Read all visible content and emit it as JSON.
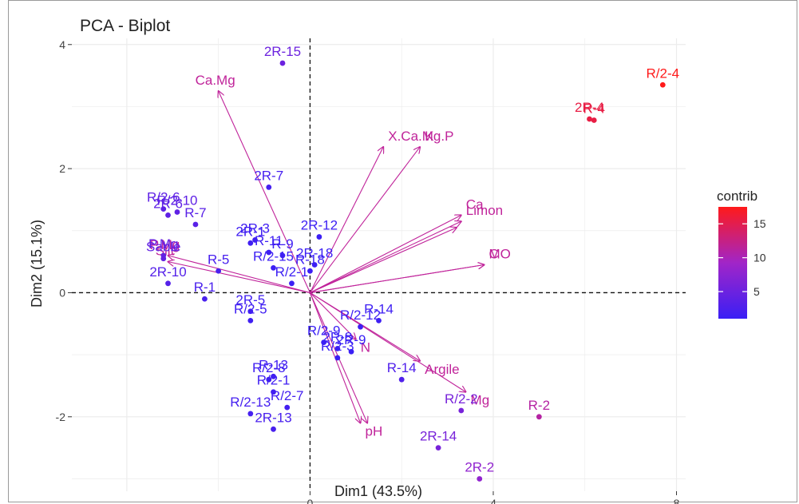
{
  "chart_data": {
    "type": "scatter",
    "title": "PCA - Biplot",
    "xlabel": "Dim1 (43.5%)",
    "ylabel": "Dim2 (15.1%)",
    "xlim": [
      -5.2,
      8.2
    ],
    "ylim": [
      -3.2,
      4.1
    ],
    "xticks": [
      0,
      4,
      8
    ],
    "yticks": [
      -2,
      0,
      2,
      4
    ],
    "grid": true,
    "legend": {
      "title": "contrib",
      "position": "right",
      "range": [
        1,
        17.5
      ],
      "ticks": [
        5,
        10,
        15
      ],
      "colors": {
        "low": "#3a1ff5",
        "mid": "#a125c8",
        "high": "#ff1a1a"
      }
    },
    "points": [
      {
        "label": "R/2-4",
        "x": 7.7,
        "y": 3.35,
        "contrib": 17.5
      },
      {
        "label": "2R-4",
        "x": 6.1,
        "y": 2.8,
        "contrib": 15.5
      },
      {
        "label": "R-4",
        "x": 6.2,
        "y": 2.78,
        "contrib": 15.5
      },
      {
        "label": "2R-15",
        "x": -0.6,
        "y": 3.7,
        "contrib": 5
      },
      {
        "label": "2R-7",
        "x": -0.9,
        "y": 1.7,
        "contrib": 2
      },
      {
        "label": "R/2-6",
        "x": -3.2,
        "y": 1.35,
        "contrib": 4
      },
      {
        "label": "2R-6",
        "x": -3.1,
        "y": 1.25,
        "contrib": 4
      },
      {
        "label": "R/2-10",
        "x": -2.9,
        "y": 1.3,
        "contrib": 4
      },
      {
        "label": "R-7",
        "x": -2.5,
        "y": 1.1,
        "contrib": 3.5
      },
      {
        "label": "2R-10",
        "x": -3.1,
        "y": 0.15,
        "contrib": 3.2
      },
      {
        "label": "Sable",
        "x": -3.2,
        "y": 0.55,
        "contrib": 4.3
      },
      {
        "label": "P.Mg",
        "x": -3.2,
        "y": 0.6,
        "contrib": 4.3
      },
      {
        "label": "R-1",
        "x": -2.3,
        "y": -0.1,
        "contrib": 2.2
      },
      {
        "label": "R-5",
        "x": -2.0,
        "y": 0.35,
        "contrib": 2.2
      },
      {
        "label": "2R-1",
        "x": -1.3,
        "y": 0.8,
        "contrib": 1.5
      },
      {
        "label": "2R-3",
        "x": -1.2,
        "y": 0.85,
        "contrib": 1.5
      },
      {
        "label": "R-11",
        "x": -0.9,
        "y": 0.65,
        "contrib": 1.4
      },
      {
        "label": "R-9",
        "x": -0.6,
        "y": 0.6,
        "contrib": 1.4
      },
      {
        "label": "R/2-15",
        "x": -0.8,
        "y": 0.4,
        "contrib": 1.2
      },
      {
        "label": "2R-12",
        "x": 0.2,
        "y": 0.9,
        "contrib": 1.2
      },
      {
        "label": "2R-18",
        "x": 0.1,
        "y": 0.45,
        "contrib": 1.2
      },
      {
        "label": "R-18",
        "x": 0.0,
        "y": 0.35,
        "contrib": 1.2
      },
      {
        "label": "R/2-1",
        "x": -0.4,
        "y": 0.15,
        "contrib": 1.2
      },
      {
        "label": "2R-5",
        "x": -1.3,
        "y": -0.3,
        "contrib": 1.5
      },
      {
        "label": "R/2-5",
        "x": -1.3,
        "y": -0.45,
        "contrib": 1.5
      },
      {
        "label": "R/2-12",
        "x": 1.1,
        "y": -0.55,
        "contrib": 1.3
      },
      {
        "label": "R-14",
        "x": 1.5,
        "y": -0.45,
        "contrib": 1.3
      },
      {
        "label": "R/2-9",
        "x": 0.3,
        "y": -0.8,
        "contrib": 1
      },
      {
        "label": "2R-8",
        "x": 0.6,
        "y": -0.9,
        "contrib": 1
      },
      {
        "label": "2R-9",
        "x": 0.9,
        "y": -0.95,
        "contrib": 1
      },
      {
        "label": "R/2-3",
        "x": 0.6,
        "y": -1.05,
        "contrib": 1
      },
      {
        "label": "R-13",
        "x": -0.8,
        "y": -1.35,
        "contrib": 1.5
      },
      {
        "label": "R/2-8",
        "x": -0.9,
        "y": -1.4,
        "contrib": 1.5
      },
      {
        "label": "R/2-1",
        "x": -0.8,
        "y": -1.6,
        "contrib": 1.5
      },
      {
        "label": "R/2-7",
        "x": -0.5,
        "y": -1.85,
        "contrib": 1.8
      },
      {
        "label": "R/2-13",
        "x": -1.3,
        "y": -1.95,
        "contrib": 2
      },
      {
        "label": "2R-13",
        "x": -0.8,
        "y": -2.2,
        "contrib": 2.2
      },
      {
        "label": "R-14",
        "x": 2.0,
        "y": -1.4,
        "contrib": 2.8
      },
      {
        "label": "R/2-2",
        "x": 3.3,
        "y": -1.9,
        "contrib": 6
      },
      {
        "label": "R-2",
        "x": 5.0,
        "y": -2.0,
        "contrib": 11
      },
      {
        "label": "2R-14",
        "x": 2.8,
        "y": -2.5,
        "contrib": 6
      },
      {
        "label": "2R-2",
        "x": 3.7,
        "y": -3.0,
        "contrib": 8
      }
    ],
    "variables": [
      {
        "label": "Ca.Mg",
        "x": -2.0,
        "y": 3.25
      },
      {
        "label": "X.Ca.Mg.P",
        "x": 1.6,
        "y": 2.35
      },
      {
        "label": "K",
        "x": 2.4,
        "y": 2.35
      },
      {
        "label": "Ca",
        "x": 3.3,
        "y": 1.25
      },
      {
        "label": "Limon",
        "x": 3.3,
        "y": 1.15
      },
      {
        "label": "",
        "x": 3.2,
        "y": 1.05
      },
      {
        "label": "MO",
        "x": 3.8,
        "y": 0.45
      },
      {
        "label": "C",
        "x": 3.8,
        "y": 0.45
      },
      {
        "label": "Silt",
        "x": -3.1,
        "y": 0.5
      },
      {
        "label": "P.Mg",
        "x": -3.1,
        "y": 0.6
      },
      {
        "label": "Argile",
        "x": 2.4,
        "y": -1.1
      },
      {
        "label": "Mg",
        "x": 3.4,
        "y": -1.6
      },
      {
        "label": "pH",
        "x": 1.1,
        "y": -2.1
      },
      {
        "label": "",
        "x": 1.25,
        "y": -2.1
      },
      {
        "label": "N",
        "x": 1.0,
        "y": -0.75
      }
    ],
    "variable_color": "#c0239a"
  }
}
